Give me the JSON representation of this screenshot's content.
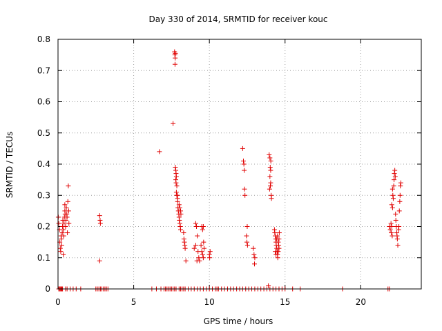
{
  "chart_data": {
    "type": "scatter",
    "title": "Day 330 of 2014, SRMTID for receiver kouc",
    "xlabel": "GPS time / hours",
    "ylabel": "SRMTID / TECUs",
    "xlim": [
      0,
      24
    ],
    "ylim": [
      0,
      0.8
    ],
    "x_ticks": [
      0,
      5,
      10,
      15,
      20
    ],
    "y_ticks": [
      0,
      0.1,
      0.2,
      0.3,
      0.4,
      0.5,
      0.6,
      0.7,
      0.8
    ],
    "x_tick_labels": [
      "0",
      "5",
      "10",
      "15",
      "20"
    ],
    "y_tick_labels": [
      "0",
      "0.1",
      "0.2",
      "0.3",
      "0.4",
      "0.5",
      "0.6",
      "0.7",
      "0.8"
    ],
    "grid": true,
    "marker": "plus",
    "marker_color": "#e00000",
    "series": [
      {
        "points": [
          [
            0.02,
            0.23
          ],
          [
            0.05,
            0.21
          ],
          [
            0.1,
            0.19
          ],
          [
            0.12,
            0.15
          ],
          [
            0.15,
            0.13
          ],
          [
            0.18,
            0.12
          ],
          [
            0.2,
            0.17
          ],
          [
            0.22,
            0.16
          ],
          [
            0.25,
            0.14
          ],
          [
            0.28,
            0.18
          ],
          [
            0.3,
            0.2
          ],
          [
            0.32,
            0.22
          ],
          [
            0.35,
            0.19
          ],
          [
            0.38,
            0.17
          ],
          [
            0.4,
            0.21
          ],
          [
            0.42,
            0.23
          ],
          [
            0.45,
            0.25
          ],
          [
            0.47,
            0.24
          ],
          [
            0.5,
            0.2
          ],
          [
            0.52,
            0.22
          ],
          [
            0.55,
            0.26
          ],
          [
            0.58,
            0.24
          ],
          [
            0.6,
            0.23
          ],
          [
            0.62,
            0.18
          ],
          [
            0.65,
            0.28
          ],
          [
            0.68,
            0.33
          ],
          [
            0.7,
            0.25
          ],
          [
            0.72,
            0.21
          ],
          [
            0.35,
            0.11
          ],
          [
            0.45,
            0.27
          ],
          [
            2.75,
            0.235
          ],
          [
            2.78,
            0.22
          ],
          [
            2.8,
            0.21
          ],
          [
            2.75,
            0.09
          ],
          [
            6.7,
            0.44
          ],
          [
            7.6,
            0.53
          ],
          [
            7.7,
            0.76
          ],
          [
            7.72,
            0.75
          ],
          [
            7.74,
            0.74
          ],
          [
            7.73,
            0.72
          ],
          [
            7.75,
            0.755
          ],
          [
            7.75,
            0.39
          ],
          [
            7.78,
            0.38
          ],
          [
            7.8,
            0.37
          ],
          [
            7.82,
            0.36
          ],
          [
            7.78,
            0.35
          ],
          [
            7.8,
            0.34
          ],
          [
            7.85,
            0.33
          ],
          [
            7.82,
            0.31
          ],
          [
            7.88,
            0.3
          ],
          [
            7.9,
            0.28
          ],
          [
            7.92,
            0.26
          ],
          [
            7.95,
            0.25
          ],
          [
            7.98,
            0.24
          ],
          [
            8.0,
            0.23
          ],
          [
            8.02,
            0.22
          ],
          [
            8.05,
            0.21
          ],
          [
            8.08,
            0.2
          ],
          [
            8.1,
            0.19
          ],
          [
            8.0,
            0.27
          ],
          [
            8.05,
            0.26
          ],
          [
            8.1,
            0.25
          ],
          [
            8.12,
            0.24
          ],
          [
            7.85,
            0.3
          ],
          [
            7.9,
            0.29
          ],
          [
            8.3,
            0.18
          ],
          [
            8.35,
            0.15
          ],
          [
            8.38,
            0.14
          ],
          [
            8.4,
            0.13
          ],
          [
            8.45,
            0.09
          ],
          [
            8.32,
            0.16
          ],
          [
            9.0,
            0.13
          ],
          [
            9.1,
            0.14
          ],
          [
            9.15,
            0.2
          ],
          [
            9.2,
            0.17
          ],
          [
            9.25,
            0.12
          ],
          [
            9.3,
            0.1
          ],
          [
            9.35,
            0.09
          ],
          [
            9.1,
            0.21
          ],
          [
            9.18,
            0.09
          ],
          [
            9.5,
            0.2
          ],
          [
            9.55,
            0.19
          ],
          [
            9.6,
            0.2
          ],
          [
            9.62,
            0.15
          ],
          [
            9.65,
            0.13
          ],
          [
            9.5,
            0.12
          ],
          [
            9.55,
            0.11
          ],
          [
            9.6,
            0.1
          ],
          [
            9.45,
            0.14
          ],
          [
            10.0,
            0.11
          ],
          [
            10.02,
            0.1
          ],
          [
            10.05,
            0.12
          ],
          [
            12.2,
            0.45
          ],
          [
            12.25,
            0.41
          ],
          [
            12.28,
            0.4
          ],
          [
            12.3,
            0.38
          ],
          [
            12.32,
            0.32
          ],
          [
            12.35,
            0.3
          ],
          [
            12.5,
            0.2
          ],
          [
            12.45,
            0.17
          ],
          [
            12.48,
            0.15
          ],
          [
            12.52,
            0.14
          ],
          [
            12.9,
            0.13
          ],
          [
            12.95,
            0.11
          ],
          [
            13.0,
            0.1
          ],
          [
            12.98,
            0.08
          ],
          [
            13.9,
            0.01
          ],
          [
            13.95,
            0.43
          ],
          [
            14.0,
            0.42
          ],
          [
            14.02,
            0.39
          ],
          [
            14.05,
            0.38
          ],
          [
            14.0,
            0.36
          ],
          [
            14.03,
            0.33
          ],
          [
            13.98,
            0.32
          ],
          [
            14.05,
            0.34
          ],
          [
            14.08,
            0.3
          ],
          [
            14.1,
            0.29
          ],
          [
            14.06,
            0.41
          ],
          [
            14.3,
            0.19
          ],
          [
            14.32,
            0.18
          ],
          [
            14.35,
            0.17
          ],
          [
            14.38,
            0.16
          ],
          [
            14.4,
            0.15
          ],
          [
            14.42,
            0.14
          ],
          [
            14.45,
            0.13
          ],
          [
            14.48,
            0.12
          ],
          [
            14.5,
            0.11
          ],
          [
            14.52,
            0.1
          ],
          [
            14.55,
            0.15
          ],
          [
            14.58,
            0.14
          ],
          [
            14.6,
            0.13
          ],
          [
            14.35,
            0.12
          ],
          [
            14.4,
            0.11
          ],
          [
            14.45,
            0.16
          ],
          [
            14.5,
            0.17
          ],
          [
            14.55,
            0.12
          ],
          [
            14.6,
            0.16
          ],
          [
            14.62,
            0.18
          ],
          [
            21.9,
            0.2
          ],
          [
            21.95,
            0.19
          ],
          [
            22.0,
            0.21
          ],
          [
            22.05,
            0.2
          ],
          [
            22.02,
            0.18
          ],
          [
            22.08,
            0.17
          ],
          [
            22.1,
            0.26
          ],
          [
            22.12,
            0.3
          ],
          [
            22.15,
            0.29
          ],
          [
            22.18,
            0.33
          ],
          [
            22.2,
            0.35
          ],
          [
            22.22,
            0.37
          ],
          [
            22.25,
            0.38
          ],
          [
            22.28,
            0.36
          ],
          [
            22.3,
            0.24
          ],
          [
            22.32,
            0.22
          ],
          [
            22.35,
            0.2
          ],
          [
            22.38,
            0.18
          ],
          [
            22.4,
            0.17
          ],
          [
            22.42,
            0.16
          ],
          [
            22.45,
            0.14
          ],
          [
            22.5,
            0.19
          ],
          [
            22.52,
            0.2
          ],
          [
            22.55,
            0.25
          ],
          [
            22.58,
            0.28
          ],
          [
            22.6,
            0.3
          ],
          [
            22.62,
            0.33
          ],
          [
            22.65,
            0.34
          ],
          [
            22.1,
            0.32
          ],
          [
            22.05,
            0.27
          ]
        ]
      }
    ],
    "zero_points_x": [
      0.05,
      0.1,
      0.15,
      0.2,
      0.25,
      0.3,
      0.5,
      0.6,
      0.8,
      1.0,
      1.2,
      1.5,
      2.5,
      2.6,
      2.7,
      2.8,
      2.9,
      3.0,
      3.1,
      3.2,
      3.3,
      6.2,
      6.5,
      6.8,
      7.0,
      7.1,
      7.2,
      7.3,
      7.4,
      7.5,
      7.6,
      7.7,
      7.8,
      8.0,
      8.1,
      8.2,
      8.3,
      8.4,
      8.6,
      8.8,
      9.0,
      9.2,
      9.4,
      9.6,
      9.8,
      10.0,
      10.2,
      10.4,
      10.5,
      10.6,
      10.8,
      11.0,
      11.2,
      11.4,
      11.6,
      11.8,
      12.0,
      12.2,
      12.4,
      12.6,
      12.8,
      13.0,
      13.2,
      13.4,
      13.6,
      13.8,
      14.0,
      14.2,
      14.4,
      14.6,
      14.8,
      15.0,
      15.5,
      16.0,
      18.8,
      21.8,
      21.9
    ]
  }
}
